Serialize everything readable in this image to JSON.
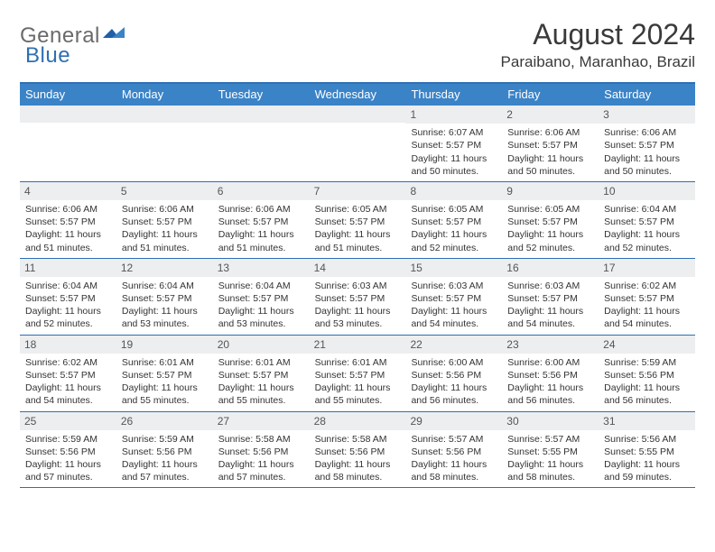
{
  "logo": {
    "text1": "General",
    "text2": "Blue"
  },
  "title": "August 2024",
  "location": "Paraibano, Maranhao, Brazil",
  "colors": {
    "header_bg": "#3b83c7",
    "border": "#2f6fb3",
    "daynum_bg": "#eceef0",
    "text": "#333333",
    "logo_gray": "#6a6a6a",
    "logo_blue": "#2f6fb3"
  },
  "dayNames": [
    "Sunday",
    "Monday",
    "Tuesday",
    "Wednesday",
    "Thursday",
    "Friday",
    "Saturday"
  ],
  "weeks": [
    [
      {
        "n": "",
        "rise": "",
        "set": "",
        "day": ""
      },
      {
        "n": "",
        "rise": "",
        "set": "",
        "day": ""
      },
      {
        "n": "",
        "rise": "",
        "set": "",
        "day": ""
      },
      {
        "n": "",
        "rise": "",
        "set": "",
        "day": ""
      },
      {
        "n": "1",
        "rise": "Sunrise: 6:07 AM",
        "set": "Sunset: 5:57 PM",
        "day": "Daylight: 11 hours and 50 minutes."
      },
      {
        "n": "2",
        "rise": "Sunrise: 6:06 AM",
        "set": "Sunset: 5:57 PM",
        "day": "Daylight: 11 hours and 50 minutes."
      },
      {
        "n": "3",
        "rise": "Sunrise: 6:06 AM",
        "set": "Sunset: 5:57 PM",
        "day": "Daylight: 11 hours and 50 minutes."
      }
    ],
    [
      {
        "n": "4",
        "rise": "Sunrise: 6:06 AM",
        "set": "Sunset: 5:57 PM",
        "day": "Daylight: 11 hours and 51 minutes."
      },
      {
        "n": "5",
        "rise": "Sunrise: 6:06 AM",
        "set": "Sunset: 5:57 PM",
        "day": "Daylight: 11 hours and 51 minutes."
      },
      {
        "n": "6",
        "rise": "Sunrise: 6:06 AM",
        "set": "Sunset: 5:57 PM",
        "day": "Daylight: 11 hours and 51 minutes."
      },
      {
        "n": "7",
        "rise": "Sunrise: 6:05 AM",
        "set": "Sunset: 5:57 PM",
        "day": "Daylight: 11 hours and 51 minutes."
      },
      {
        "n": "8",
        "rise": "Sunrise: 6:05 AM",
        "set": "Sunset: 5:57 PM",
        "day": "Daylight: 11 hours and 52 minutes."
      },
      {
        "n": "9",
        "rise": "Sunrise: 6:05 AM",
        "set": "Sunset: 5:57 PM",
        "day": "Daylight: 11 hours and 52 minutes."
      },
      {
        "n": "10",
        "rise": "Sunrise: 6:04 AM",
        "set": "Sunset: 5:57 PM",
        "day": "Daylight: 11 hours and 52 minutes."
      }
    ],
    [
      {
        "n": "11",
        "rise": "Sunrise: 6:04 AM",
        "set": "Sunset: 5:57 PM",
        "day": "Daylight: 11 hours and 52 minutes."
      },
      {
        "n": "12",
        "rise": "Sunrise: 6:04 AM",
        "set": "Sunset: 5:57 PM",
        "day": "Daylight: 11 hours and 53 minutes."
      },
      {
        "n": "13",
        "rise": "Sunrise: 6:04 AM",
        "set": "Sunset: 5:57 PM",
        "day": "Daylight: 11 hours and 53 minutes."
      },
      {
        "n": "14",
        "rise": "Sunrise: 6:03 AM",
        "set": "Sunset: 5:57 PM",
        "day": "Daylight: 11 hours and 53 minutes."
      },
      {
        "n": "15",
        "rise": "Sunrise: 6:03 AM",
        "set": "Sunset: 5:57 PM",
        "day": "Daylight: 11 hours and 54 minutes."
      },
      {
        "n": "16",
        "rise": "Sunrise: 6:03 AM",
        "set": "Sunset: 5:57 PM",
        "day": "Daylight: 11 hours and 54 minutes."
      },
      {
        "n": "17",
        "rise": "Sunrise: 6:02 AM",
        "set": "Sunset: 5:57 PM",
        "day": "Daylight: 11 hours and 54 minutes."
      }
    ],
    [
      {
        "n": "18",
        "rise": "Sunrise: 6:02 AM",
        "set": "Sunset: 5:57 PM",
        "day": "Daylight: 11 hours and 54 minutes."
      },
      {
        "n": "19",
        "rise": "Sunrise: 6:01 AM",
        "set": "Sunset: 5:57 PM",
        "day": "Daylight: 11 hours and 55 minutes."
      },
      {
        "n": "20",
        "rise": "Sunrise: 6:01 AM",
        "set": "Sunset: 5:57 PM",
        "day": "Daylight: 11 hours and 55 minutes."
      },
      {
        "n": "21",
        "rise": "Sunrise: 6:01 AM",
        "set": "Sunset: 5:57 PM",
        "day": "Daylight: 11 hours and 55 minutes."
      },
      {
        "n": "22",
        "rise": "Sunrise: 6:00 AM",
        "set": "Sunset: 5:56 PM",
        "day": "Daylight: 11 hours and 56 minutes."
      },
      {
        "n": "23",
        "rise": "Sunrise: 6:00 AM",
        "set": "Sunset: 5:56 PM",
        "day": "Daylight: 11 hours and 56 minutes."
      },
      {
        "n": "24",
        "rise": "Sunrise: 5:59 AM",
        "set": "Sunset: 5:56 PM",
        "day": "Daylight: 11 hours and 56 minutes."
      }
    ],
    [
      {
        "n": "25",
        "rise": "Sunrise: 5:59 AM",
        "set": "Sunset: 5:56 PM",
        "day": "Daylight: 11 hours and 57 minutes."
      },
      {
        "n": "26",
        "rise": "Sunrise: 5:59 AM",
        "set": "Sunset: 5:56 PM",
        "day": "Daylight: 11 hours and 57 minutes."
      },
      {
        "n": "27",
        "rise": "Sunrise: 5:58 AM",
        "set": "Sunset: 5:56 PM",
        "day": "Daylight: 11 hours and 57 minutes."
      },
      {
        "n": "28",
        "rise": "Sunrise: 5:58 AM",
        "set": "Sunset: 5:56 PM",
        "day": "Daylight: 11 hours and 58 minutes."
      },
      {
        "n": "29",
        "rise": "Sunrise: 5:57 AM",
        "set": "Sunset: 5:56 PM",
        "day": "Daylight: 11 hours and 58 minutes."
      },
      {
        "n": "30",
        "rise": "Sunrise: 5:57 AM",
        "set": "Sunset: 5:55 PM",
        "day": "Daylight: 11 hours and 58 minutes."
      },
      {
        "n": "31",
        "rise": "Sunrise: 5:56 AM",
        "set": "Sunset: 5:55 PM",
        "day": "Daylight: 11 hours and 59 minutes."
      }
    ]
  ]
}
